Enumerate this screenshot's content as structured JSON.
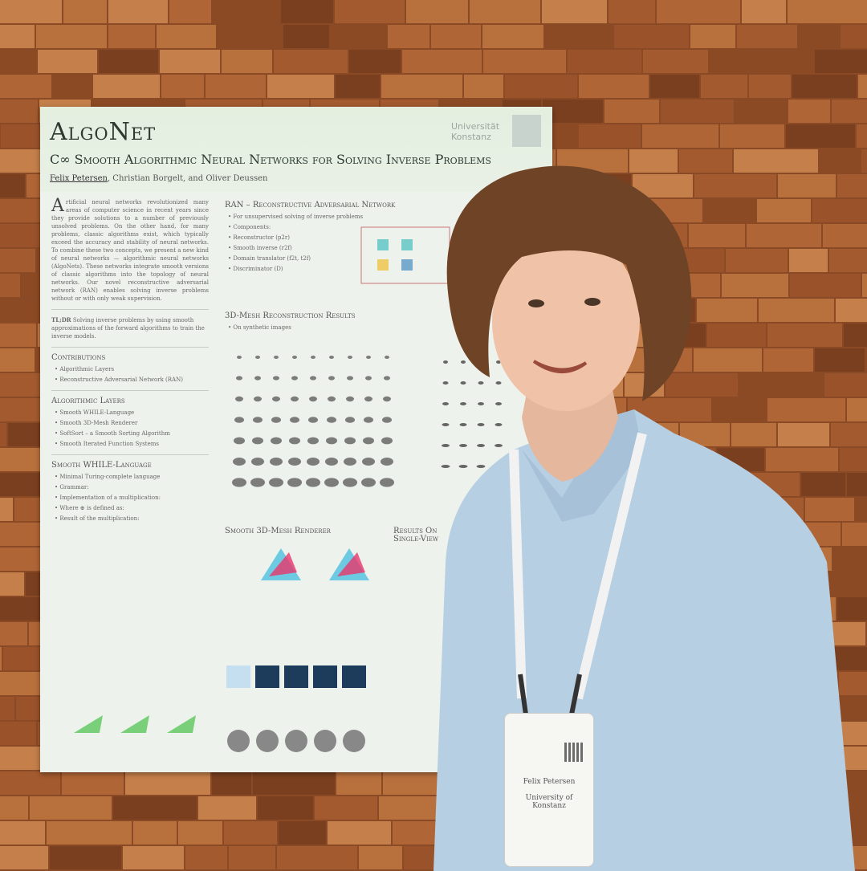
{
  "poster": {
    "title": "AlgoNet",
    "subtitle": "C∞ Smooth Algorithmic Neural Networks for Solving Inverse Problems",
    "authors": [
      "Felix Petersen",
      "Christian Borgelt",
      "Oliver Deussen"
    ],
    "institution": "Universität Konstanz",
    "abstract": "Artificial neural networks revolutionized many areas of computer science in recent years since they provide solutions to a number of previously unsolved problems. On the other hand, for many problems, classic algorithms exist, which typically exceed the accuracy and stability of neural networks. To combine these two concepts, we present a new kind of neural networks — algorithmic neural networks (AlgoNets). These networks integrate smooth versions of classic algorithms into the topology of neural networks. Our novel reconstructive adversarial network (RAN) enables solving inverse problems without or with only weak supervision.",
    "tldr_heading": "TL;DR",
    "tldr": "Solving inverse problems by using smooth approximations of the forward algorithms to train the inverse models.",
    "contributions": {
      "heading": "Contributions",
      "items": [
        "Algorithmic Layers",
        "Reconstructive Adversarial Network (RAN)"
      ]
    },
    "layers": {
      "heading": "Algorithmic Layers",
      "items": [
        "Smooth WHILE-Language",
        "Smooth 3D-Mesh Renderer",
        "SoftSort – a Smooth Sorting Algorithm",
        "Smooth Iterated Function Systems"
      ]
    },
    "while": {
      "heading": "Smooth WHILE-Language",
      "items": [
        "Minimal Turing-complete language",
        "Grammar:",
        "Implementation of a multiplication:",
        "Where ⊕ is defined as:",
        "Result of the multiplication:"
      ]
    },
    "ran": {
      "heading": "RAN – Reconstructive Adversarial Network",
      "items": [
        "For unsupervised solving of inverse problems",
        "Components:",
        "Reconstructor (p2r)",
        "Smooth inverse (r2f)",
        "Domain translator (f2t, t2f)",
        "Discriminator (D)"
      ]
    },
    "mesh": {
      "heading": "3D-Mesh Reconstruction Results",
      "items": [
        "On synthetic images"
      ]
    },
    "renderer": {
      "heading": "Smooth 3D-Mesh Renderer"
    },
    "results": {
      "heading": "Results On Single-View"
    }
  },
  "badge": {
    "name": "Felix Petersen",
    "affiliation": "University of Konstanz"
  }
}
